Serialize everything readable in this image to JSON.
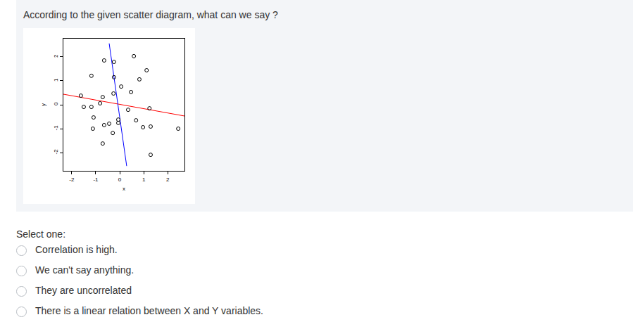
{
  "question": "According to the given scatter diagram, what can we say ?",
  "chart_data": {
    "type": "scatter",
    "x_label": "x",
    "y_label": "y",
    "x": [
      -0.65,
      -1.18,
      -0.24,
      0.59,
      1.12,
      -0.24,
      0.06,
      0.47,
      0.82,
      -1.62,
      -0.71,
      -0.26,
      -0.82,
      -1.5,
      -1.18,
      0.35,
      1.24,
      -1.09,
      0.68,
      -0.65,
      -0.44,
      -0.06,
      -0.06,
      0.97,
      1.29,
      -1.12,
      -0.29,
      2.44,
      -0.71,
      1.29
    ],
    "values": [
      1.85,
      1.21,
      1.79,
      2.03,
      1.44,
      1.15,
      0.76,
      0.53,
      1.06,
      0.38,
      0.32,
      0.47,
      0.06,
      -0.09,
      -0.09,
      -0.21,
      -0.15,
      -0.53,
      -0.65,
      -0.85,
      -0.79,
      -0.76,
      -0.62,
      -0.94,
      -0.91,
      -1.0,
      -1.18,
      -1.0,
      -1.62,
      -2.09
    ],
    "color": "#000000",
    "marker": "open_circle",
    "lines": [
      {
        "color": "#ff0000",
        "line_style": "solid",
        "x": [
          -2.35,
          2.7
        ],
        "values": [
          0.44,
          -0.47
        ]
      },
      {
        "color": "#0000ff",
        "line_style": "solid",
        "x": [
          -0.44,
          0.29
        ],
        "values": [
          2.56,
          -2.56
        ]
      }
    ],
    "xlim": [
      -2.35,
      2.7
    ],
    "ylim": [
      -2.76,
      2.76
    ],
    "xticks": [
      -2,
      -1,
      0,
      1,
      2
    ],
    "yticks": [
      -2,
      -1,
      0,
      1,
      2
    ],
    "grid": false
  },
  "select_label": "Select one:",
  "options": [
    "Correlation is high.",
    "We can't say anything.",
    "They are uncorrelated",
    "There is a linear relation between X and Y variables."
  ]
}
